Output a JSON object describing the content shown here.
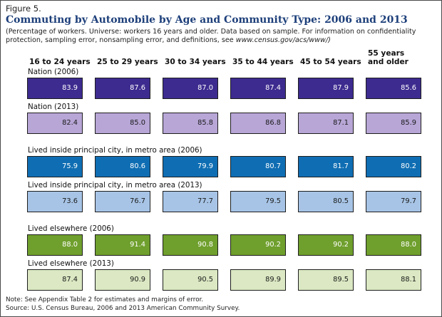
{
  "figure_label": "Figure 5.",
  "chart_data": {
    "type": "table",
    "title": "Commuting by Automobile by Age and Community Type: 2006 and 2013",
    "subtitle": "(Percentage of workers. Universe: workers 16 years and older. Data based on sample. For information on confidentiality protection, sampling error, nonsampling error, and definitions, see",
    "subtitle_url": "www.census.gov/acs/www/)",
    "columns": [
      [
        "16 to 24 years"
      ],
      [
        "25 to 29 years"
      ],
      [
        "30 to 34 years"
      ],
      [
        "35 to 44 years"
      ],
      [
        "45 to 54 years"
      ],
      [
        "55 years",
        "and older"
      ]
    ],
    "series": [
      {
        "name": "Nation (2006)",
        "values": [
          83.9,
          87.6,
          87.0,
          87.4,
          87.9,
          85.6
        ],
        "color": "#3d2b8f",
        "text_color": "#ffffff"
      },
      {
        "name": "Nation (2013)",
        "values": [
          82.4,
          85.0,
          85.8,
          86.8,
          87.1,
          85.9
        ],
        "color": "#b7a6d6",
        "text_color": "#1a1a1a"
      },
      {
        "name": "Lived inside principal city, in metro area (2006)",
        "values": [
          75.9,
          80.6,
          79.9,
          80.7,
          81.7,
          80.2
        ],
        "color": "#0f6eb3",
        "text_color": "#ffffff"
      },
      {
        "name": "Lived inside principal city, in metro area (2013)",
        "values": [
          73.6,
          76.7,
          77.7,
          79.5,
          80.5,
          79.7
        ],
        "color": "#a7c4e6",
        "text_color": "#1a1a1a"
      },
      {
        "name": "Lived elsewhere (2006)",
        "values": [
          88.0,
          91.4,
          90.8,
          90.2,
          90.2,
          88.0
        ],
        "color": "#6f9f2d",
        "text_color": "#ffffff"
      },
      {
        "name": "Lived elsewhere (2013)",
        "values": [
          87.4,
          90.9,
          90.5,
          89.9,
          89.5,
          88.1
        ],
        "color": "#dbe8c3",
        "text_color": "#1a1a1a"
      }
    ]
  },
  "notes": [
    "Note: See Appendix Table 2 for estimates and margins of error.",
    "Source: U.S. Census Bureau, 2006 and 2013 American Community Survey."
  ]
}
